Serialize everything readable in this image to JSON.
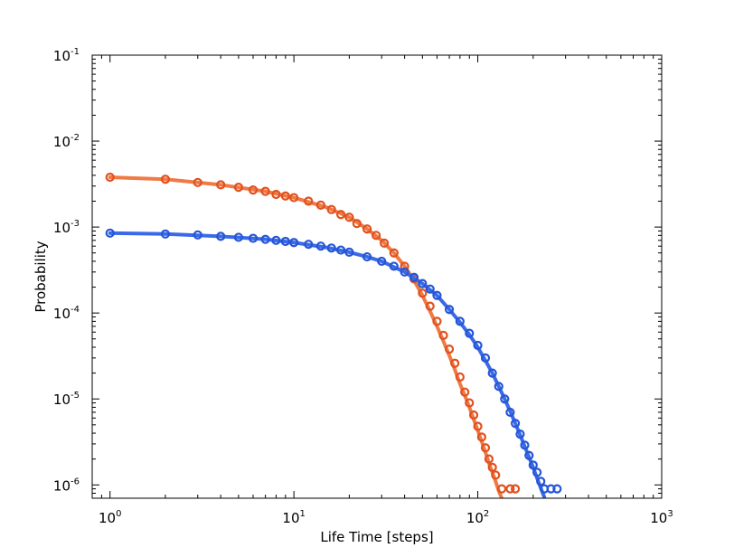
{
  "chart_data": {
    "type": "scatter",
    "title": "",
    "xlabel": "Life Time [steps]",
    "ylabel": "Probability",
    "x_scale": "log",
    "y_scale": "log",
    "xlim": [
      0.8,
      1000
    ],
    "ylim": [
      7e-07,
      0.1
    ],
    "grid": false,
    "legend": "none",
    "x_ticks": [
      {
        "value": 1,
        "base": "10",
        "exp": "0"
      },
      {
        "value": 10,
        "base": "10",
        "exp": "1"
      },
      {
        "value": 100,
        "base": "10",
        "exp": "2"
      },
      {
        "value": 1000,
        "base": "10",
        "exp": "3"
      }
    ],
    "y_ticks": [
      {
        "value": 1e-06,
        "base": "10",
        "exp": "-6"
      },
      {
        "value": 1e-05,
        "base": "10",
        "exp": "-5"
      },
      {
        "value": 0.0001,
        "base": "10",
        "exp": "-4"
      },
      {
        "value": 0.001,
        "base": "10",
        "exp": "-3"
      },
      {
        "value": 0.01,
        "base": "10",
        "exp": "-2"
      },
      {
        "value": 0.1,
        "base": "10",
        "exp": "-1"
      }
    ],
    "series": [
      {
        "color": "#e0521f",
        "fit_color": "#f07a45",
        "points": [
          [
            1,
            0.0038
          ],
          [
            2,
            0.0036
          ],
          [
            3,
            0.0033
          ],
          [
            4,
            0.0031
          ],
          [
            5,
            0.0029
          ],
          [
            6,
            0.0027
          ],
          [
            7,
            0.0026
          ],
          [
            8,
            0.0024
          ],
          [
            9,
            0.0023
          ],
          [
            10,
            0.0022
          ],
          [
            12,
            0.002
          ],
          [
            14,
            0.0018
          ],
          [
            16,
            0.0016
          ],
          [
            18,
            0.0014
          ],
          [
            20,
            0.0013
          ],
          [
            22,
            0.0011
          ],
          [
            25,
            0.00095
          ],
          [
            28,
            0.0008
          ],
          [
            31,
            0.00065
          ],
          [
            35,
            0.0005
          ],
          [
            40,
            0.00035
          ],
          [
            45,
            0.00025
          ],
          [
            50,
            0.00017
          ],
          [
            55,
            0.00012
          ],
          [
            60,
            8e-05
          ],
          [
            65,
            5.5e-05
          ],
          [
            70,
            3.8e-05
          ],
          [
            75,
            2.6e-05
          ],
          [
            80,
            1.8e-05
          ],
          [
            85,
            1.2e-05
          ],
          [
            90,
            9e-06
          ],
          [
            95,
            6.5e-06
          ],
          [
            100,
            4.8e-06
          ],
          [
            105,
            3.6e-06
          ],
          [
            110,
            2.7e-06
          ],
          [
            115,
            2e-06
          ],
          [
            120,
            1.6e-06
          ],
          [
            125,
            1.3e-06
          ],
          [
            135,
            9e-07
          ],
          [
            150,
            9e-07
          ],
          [
            160,
            9e-07
          ]
        ],
        "fit": [
          [
            1,
            0.0038
          ],
          [
            2,
            0.0036
          ],
          [
            4,
            0.0031
          ],
          [
            7,
            0.0026
          ],
          [
            10,
            0.0022
          ],
          [
            15,
            0.0017
          ],
          [
            20,
            0.0013
          ],
          [
            25,
            0.00095
          ],
          [
            30,
            0.0007
          ],
          [
            35,
            0.0005
          ],
          [
            40,
            0.00035
          ],
          [
            45,
            0.00024
          ],
          [
            50,
            0.00016
          ],
          [
            55,
            0.000105
          ],
          [
            60,
            7e-05
          ],
          [
            65,
            4.7e-05
          ],
          [
            70,
            3.2e-05
          ],
          [
            75,
            2.2e-05
          ],
          [
            80,
            1.5e-05
          ],
          [
            85,
            1.1e-05
          ],
          [
            90,
            8e-06
          ],
          [
            95,
            5.8e-06
          ],
          [
            100,
            4.3e-06
          ],
          [
            105,
            3.2e-06
          ],
          [
            110,
            2.4e-06
          ],
          [
            115,
            1.8e-06
          ],
          [
            120,
            1.4e-06
          ],
          [
            125,
            1.1e-06
          ],
          [
            130,
            8.5e-07
          ],
          [
            135,
            7e-07
          ]
        ]
      },
      {
        "color": "#2656d6",
        "fit_color": "#3a6ae8",
        "points": [
          [
            1,
            0.00085
          ],
          [
            2,
            0.00083
          ],
          [
            3,
            0.00081
          ],
          [
            4,
            0.00078
          ],
          [
            5,
            0.00076
          ],
          [
            6,
            0.00074
          ],
          [
            7,
            0.00072
          ],
          [
            8,
            0.0007
          ],
          [
            9,
            0.00068
          ],
          [
            10,
            0.00066
          ],
          [
            12,
            0.00063
          ],
          [
            14,
            0.0006
          ],
          [
            16,
            0.00057
          ],
          [
            18,
            0.00054
          ],
          [
            20,
            0.00051
          ],
          [
            25,
            0.00045
          ],
          [
            30,
            0.0004
          ],
          [
            35,
            0.00035
          ],
          [
            40,
            0.0003
          ],
          [
            45,
            0.00026
          ],
          [
            50,
            0.00022
          ],
          [
            55,
            0.00019
          ],
          [
            60,
            0.00016
          ],
          [
            70,
            0.00011
          ],
          [
            80,
            8e-05
          ],
          [
            90,
            5.8e-05
          ],
          [
            100,
            4.2e-05
          ],
          [
            110,
            3e-05
          ],
          [
            120,
            2e-05
          ],
          [
            130,
            1.4e-05
          ],
          [
            140,
            1e-05
          ],
          [
            150,
            7e-06
          ],
          [
            160,
            5.2e-06
          ],
          [
            170,
            3.9e-06
          ],
          [
            180,
            2.9e-06
          ],
          [
            190,
            2.2e-06
          ],
          [
            200,
            1.7e-06
          ],
          [
            210,
            1.4e-06
          ],
          [
            220,
            1.1e-06
          ],
          [
            230,
            9e-07
          ],
          [
            250,
            9e-07
          ],
          [
            270,
            9e-07
          ]
        ],
        "fit": [
          [
            1,
            0.00085
          ],
          [
            2,
            0.00083
          ],
          [
            4,
            0.00078
          ],
          [
            7,
            0.00072
          ],
          [
            10,
            0.00066
          ],
          [
            15,
            0.00058
          ],
          [
            20,
            0.00051
          ],
          [
            25,
            0.00045
          ],
          [
            30,
            0.0004
          ],
          [
            40,
            0.0003
          ],
          [
            50,
            0.00022
          ],
          [
            60,
            0.00016
          ],
          [
            70,
            0.00011
          ],
          [
            80,
            7.8e-05
          ],
          [
            90,
            5.6e-05
          ],
          [
            100,
            4e-05
          ],
          [
            110,
            2.8e-05
          ],
          [
            120,
            2e-05
          ],
          [
            130,
            1.4e-05
          ],
          [
            140,
            1e-05
          ],
          [
            150,
            7.2e-06
          ],
          [
            160,
            5.2e-06
          ],
          [
            170,
            3.8e-06
          ],
          [
            180,
            2.8e-06
          ],
          [
            190,
            2.1e-06
          ],
          [
            200,
            1.6e-06
          ],
          [
            210,
            1.2e-06
          ],
          [
            220,
            9.2e-07
          ],
          [
            230,
            7.2e-07
          ]
        ]
      }
    ]
  }
}
